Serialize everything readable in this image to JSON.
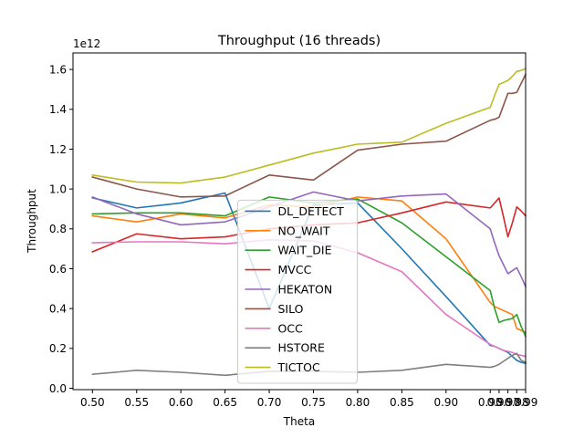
{
  "chart_data": {
    "type": "line",
    "title": "Throughput (16 threads)",
    "xlabel": "Theta",
    "ylabel": "Throughput",
    "y_multiplier": "1e12",
    "xlim": [
      0.478,
      0.99
    ],
    "ylim": [
      -0.007,
      1.683
    ],
    "legend_position": "lower-center",
    "grid": false,
    "x_ticks": [
      0.5,
      0.55,
      0.6,
      0.65,
      0.7,
      0.75,
      0.8,
      0.85,
      0.9,
      0.95,
      0.96,
      0.97,
      0.98,
      0.99
    ],
    "x_tick_labels": [
      "0.50",
      "0.55",
      "0.60",
      "0.65",
      "0.70",
      "0.75",
      "0.80",
      "0.85",
      "0.90",
      "0.95",
      "0.96",
      "0.97",
      "0.98",
      "0.99"
    ],
    "y_ticks": [
      0.0,
      0.2,
      0.4,
      0.6,
      0.8,
      1.0,
      1.2,
      1.4,
      1.6
    ],
    "y_tick_labels": [
      "0.0",
      "0.2",
      "0.4",
      "0.6",
      "0.8",
      "1.0",
      "1.2",
      "1.4",
      "1.6"
    ],
    "x": [
      0.5,
      0.55,
      0.6,
      0.65,
      0.7,
      0.75,
      0.8,
      0.85,
      0.9,
      0.95,
      0.955,
      0.96,
      0.965,
      0.97,
      0.975,
      0.98,
      0.985,
      0.99
    ],
    "series": [
      {
        "name": "DL_DETECT",
        "color": "#1f77b4",
        "values": [
          0.955,
          0.905,
          0.93,
          0.98,
          0.4,
          0.92,
          0.93,
          0.7,
          0.46,
          0.215,
          0.21,
          0.2,
          0.19,
          0.18,
          0.16,
          0.14,
          0.13,
          0.125
        ]
      },
      {
        "name": "NO_WAIT",
        "color": "#ff7f0e",
        "values": [
          0.865,
          0.835,
          0.875,
          0.855,
          0.92,
          0.91,
          0.96,
          0.94,
          0.75,
          0.43,
          0.41,
          0.4,
          0.39,
          0.38,
          0.37,
          0.3,
          0.29,
          0.28
        ]
      },
      {
        "name": "WAIT_DIE",
        "color": "#2ca02c",
        "values": [
          0.875,
          0.88,
          0.88,
          0.865,
          0.96,
          0.93,
          0.95,
          0.83,
          0.66,
          0.49,
          0.4,
          0.33,
          0.34,
          0.345,
          0.35,
          0.37,
          0.31,
          0.26
        ]
      },
      {
        "name": "MVCC",
        "color": "#d62728",
        "values": [
          0.685,
          0.775,
          0.75,
          0.76,
          0.8,
          0.82,
          0.83,
          0.88,
          0.935,
          0.905,
          0.93,
          0.955,
          0.86,
          0.76,
          0.83,
          0.91,
          0.89,
          0.865
        ]
      },
      {
        "name": "HEKATON",
        "color": "#9467bd",
        "values": [
          0.96,
          0.875,
          0.82,
          0.835,
          0.91,
          0.985,
          0.94,
          0.965,
          0.975,
          0.8,
          0.73,
          0.665,
          0.62,
          0.575,
          0.59,
          0.605,
          0.56,
          0.51
        ]
      },
      {
        "name": "SILO",
        "color": "#8c564b",
        "values": [
          1.06,
          1.0,
          0.96,
          0.965,
          1.07,
          1.045,
          1.195,
          1.225,
          1.24,
          1.345,
          1.35,
          1.36,
          1.42,
          1.48,
          1.48,
          1.485,
          1.53,
          1.575
        ]
      },
      {
        "name": "OCC",
        "color": "#e377c2",
        "values": [
          0.73,
          0.735,
          0.735,
          0.725,
          0.745,
          0.74,
          0.68,
          0.585,
          0.37,
          0.22,
          0.21,
          0.2,
          0.19,
          0.185,
          0.18,
          0.17,
          0.165,
          0.16
        ]
      },
      {
        "name": "HSTORE",
        "color": "#7f7f7f",
        "values": [
          0.07,
          0.09,
          0.08,
          0.065,
          0.085,
          0.085,
          0.08,
          0.09,
          0.12,
          0.105,
          0.11,
          0.12,
          0.135,
          0.15,
          0.165,
          0.175,
          0.14,
          0.13
        ]
      },
      {
        "name": "TICTOC",
        "color": "#bcbd22",
        "values": [
          1.07,
          1.035,
          1.03,
          1.06,
          1.12,
          1.18,
          1.225,
          1.235,
          1.33,
          1.41,
          1.47,
          1.525,
          1.535,
          1.545,
          1.565,
          1.59,
          1.595,
          1.605
        ]
      }
    ]
  }
}
